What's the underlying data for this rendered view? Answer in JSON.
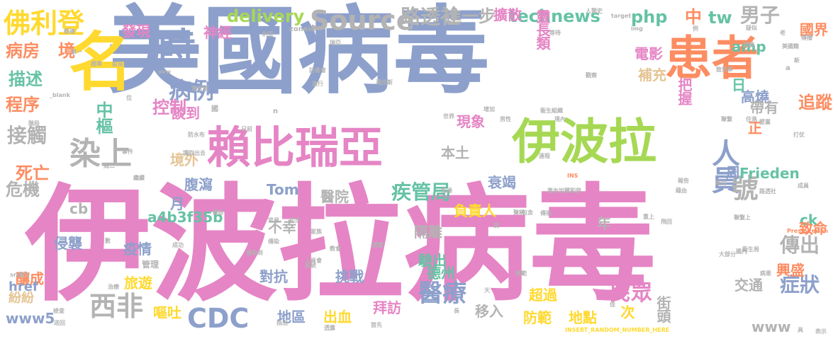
{
  "palette": {
    "pink": "#e585c5",
    "blue": "#8da0cb",
    "green": "#a6d854",
    "orange": "#fc8d62",
    "yellow": "#ffd92f",
    "teal": "#66c2a5",
    "tan": "#e5c494",
    "gray": "#b3b3b3"
  },
  "words": [
    {
      "text": "伊波拉病毒",
      "color": "pink"
    },
    {
      "text": "美國病毒",
      "color": "blue"
    },
    {
      "text": "名",
      "color": "yellow"
    },
    {
      "text": "患者",
      "color": "orange"
    },
    {
      "text": "伊波拉",
      "color": "green"
    },
    {
      "text": "賴比瑞亞",
      "color": "pink"
    },
    {
      "text": "時",
      "color": "blue"
    },
    {
      "text": "佛利登",
      "color": "yellow"
    },
    {
      "text": "染上",
      "color": "gray"
    },
    {
      "text": "人員",
      "color": "blue"
    },
    {
      "text": "號",
      "color": "gray"
    },
    {
      "text": "病例",
      "color": "blue"
    },
    {
      "text": "Source",
      "color": "gray"
    },
    {
      "text": "路透社",
      "color": "gray"
    },
    {
      "text": "接觸",
      "color": "gray"
    },
    {
      "text": "疾管局",
      "color": "teal"
    },
    {
      "text": "醫療",
      "color": "blue"
    },
    {
      "text": "CDC",
      "color": "blue"
    },
    {
      "text": "西非",
      "color": "gray"
    },
    {
      "text": "民眾",
      "color": "pink"
    },
    {
      "text": "傳出",
      "color": "gray"
    },
    {
      "text": "症狀",
      "color": "blue"
    },
    {
      "text": "男子",
      "color": "gray"
    },
    {
      "text": "控制",
      "color": "pink"
    },
    {
      "text": "中樞",
      "color": "teal"
    },
    {
      "text": "死亡",
      "color": "orange"
    },
    {
      "text": "病房",
      "color": "orange"
    },
    {
      "text": "境",
      "color": "orange"
    },
    {
      "text": "描述",
      "color": "teal"
    },
    {
      "text": "程序",
      "color": "orange"
    },
    {
      "text": "危機",
      "color": "gray"
    },
    {
      "text": "進一步",
      "color": "gray"
    },
    {
      "text": "delivery",
      "color": "green"
    },
    {
      "text": "technews",
      "color": "teal"
    },
    {
      "text": "php",
      "color": "teal"
    },
    {
      "text": "中",
      "color": "orange"
    },
    {
      "text": "tw",
      "color": "teal"
    },
    {
      "text": "追蹤",
      "color": "orange"
    },
    {
      "text": "靈長類",
      "color": "pink"
    },
    {
      "text": "擴散",
      "color": "pink"
    },
    {
      "text": "發現",
      "color": "pink"
    },
    {
      "text": "神經",
      "color": "pink"
    },
    {
      "text": "電影",
      "color": "pink"
    },
    {
      "text": "國界",
      "color": "orange"
    },
    {
      "text": "補充",
      "color": "tan"
    },
    {
      "text": "把握",
      "color": "pink"
    },
    {
      "text": "amp",
      "color": "teal"
    },
    {
      "text": "高燒",
      "color": "blue"
    },
    {
      "text": "帶有",
      "color": "gray"
    },
    {
      "text": "日",
      "color": "teal"
    },
    {
      "text": "正",
      "color": "orange"
    },
    {
      "text": "談到",
      "color": "pink"
    },
    {
      "text": "現象",
      "color": "pink"
    },
    {
      "text": "本土",
      "color": "gray"
    },
    {
      "text": "境外",
      "color": "tan"
    },
    {
      "text": "周",
      "color": "blue"
    },
    {
      "text": "Frieden",
      "color": "teal"
    },
    {
      "text": "腹瀉",
      "color": "blue"
    },
    {
      "text": "衰竭",
      "color": "blue"
    },
    {
      "text": "月",
      "color": "blue"
    },
    {
      "text": "Tom",
      "color": "blue"
    },
    {
      "text": "醫院",
      "color": "gray"
    },
    {
      "text": "負責人",
      "color": "yellow"
    },
    {
      "text": "cb",
      "color": "gray"
    },
    {
      "text": "a4b3f35b",
      "color": "teal"
    },
    {
      "text": "年",
      "color": "gray"
    },
    {
      "text": "ck",
      "color": "teal"
    },
    {
      "text": "不幸",
      "color": "gray"
    },
    {
      "text": "隔離",
      "color": "gray"
    },
    {
      "text": "侵襲",
      "color": "blue"
    },
    {
      "text": "疫情",
      "color": "blue"
    },
    {
      "text": "驗出",
      "color": "teal"
    },
    {
      "text": "致命",
      "color": "orange"
    },
    {
      "text": "釀成",
      "color": "orange"
    },
    {
      "text": "對抗",
      "color": "blue"
    },
    {
      "text": "挑戰",
      "color": "blue"
    },
    {
      "text": "德州",
      "color": "teal"
    },
    {
      "text": "旅遊",
      "color": "yellow"
    },
    {
      "text": "興盛",
      "color": "orange"
    },
    {
      "text": "href",
      "color": "blue"
    },
    {
      "text": "紛紛",
      "color": "tan"
    },
    {
      "text": "超過",
      "color": "yellow"
    },
    {
      "text": "交通",
      "color": "gray"
    },
    {
      "text": "www5",
      "color": "blue"
    },
    {
      "text": "嘔吐",
      "color": "yellow"
    },
    {
      "text": "地區",
      "color": "blue"
    },
    {
      "text": "出血",
      "color": "yellow"
    },
    {
      "text": "拜訪",
      "color": "pink"
    },
    {
      "text": "移入",
      "color": "gray"
    },
    {
      "text": "防範",
      "color": "yellow"
    },
    {
      "text": "地點",
      "color": "yellow"
    },
    {
      "text": "次",
      "color": "yellow"
    },
    {
      "text": "街頭",
      "color": "gray"
    },
    {
      "text": "www",
      "color": "gray"
    },
    {
      "text": "管理",
      "color": "gray"
    },
    {
      "text": "國",
      "color": "gray"
    },
    {
      "text": "利亞",
      "color": "gray"
    },
    {
      "text": "zoneid",
      "color": "gray"
    },
    {
      "text": "_blank",
      "color": "gray"
    },
    {
      "text": "src",
      "color": "gray"
    },
    {
      "text": "target",
      "color": "gray"
    },
    {
      "text": "img",
      "color": "gray"
    },
    {
      "text": "INS",
      "color": "orange"
    },
    {
      "text": "Presbyterian",
      "color": "orange"
    },
    {
      "text": "INSERT_RANDOM_NUMBER_HERE",
      "color": "yellow"
    },
    {
      "text": "avw",
      "color": "gray"
    },
    {
      "text": "n",
      "color": "gray"
    },
    {
      "text": "a",
      "color": "gray"
    },
    {
      "text": "第一",
      "color": "gray"
    },
    {
      "text": "記者會",
      "color": "gray"
    },
    {
      "text": "潛伏期",
      "color": "gray"
    },
    {
      "text": "確診",
      "color": "gray"
    },
    {
      "text": "感染到",
      "color": "gray"
    },
    {
      "text": "成功",
      "color": "gray"
    },
    {
      "text": "初步",
      "color": "gray"
    },
    {
      "text": "官員",
      "color": "gray"
    },
    {
      "text": "檢查",
      "color": "gray"
    },
    {
      "text": "送回",
      "color": "gray"
    },
    {
      "text": "指出",
      "color": "gray"
    },
    {
      "text": "透露",
      "color": "gray"
    },
    {
      "text": "家族",
      "color": "gray"
    },
    {
      "text": "教會",
      "color": "gray"
    },
    {
      "text": "人員會",
      "color": "gray"
    },
    {
      "text": "系統",
      "color": "gray"
    },
    {
      "text": "首先",
      "color": "gray"
    },
    {
      "text": "衛生組織",
      "color": "gray"
    },
    {
      "text": "境內",
      "color": "gray"
    },
    {
      "text": "塞內加爾和奈",
      "color": "gray"
    },
    {
      "text": "報告",
      "color": "gray"
    },
    {
      "text": "藉由",
      "color": "gray"
    },
    {
      "text": "經由",
      "color": "gray"
    },
    {
      "text": "路透社",
      "color": "gray"
    },
    {
      "text": "成員",
      "color": "gray"
    },
    {
      "text": "病患",
      "color": "gray"
    },
    {
      "text": "大部分",
      "color": "gray"
    },
    {
      "text": "國內",
      "color": "gray"
    },
    {
      "text": "衛生局",
      "color": "gray"
    },
    {
      "text": "飛回",
      "color": "gray"
    },
    {
      "text": "重上",
      "color": "gray"
    },
    {
      "text": "聯繫上",
      "color": "gray"
    },
    {
      "text": "包含",
      "color": "gray"
    },
    {
      "text": "傳染",
      "color": "gray"
    },
    {
      "text": "聲稱",
      "color": "gray"
    },
    {
      "text": "疑似",
      "color": "gray"
    },
    {
      "text": "致死率",
      "color": "gray"
    },
    {
      "text": "試驗",
      "color": "gray"
    },
    {
      "text": "聯繫",
      "color": "gray"
    },
    {
      "text": "打仗",
      "color": "gray"
    },
    {
      "text": "住進",
      "color": "gray"
    },
    {
      "text": "壁畫",
      "color": "gray"
    },
    {
      "text": "觀察",
      "color": "gray"
    },
    {
      "text": "等待",
      "color": "gray"
    },
    {
      "text": "人類史",
      "color": "gray"
    },
    {
      "text": "美國籍",
      "color": "gray"
    },
    {
      "text": "傳播",
      "color": "gray"
    },
    {
      "text": "例",
      "color": "gray"
    },
    {
      "text": "世界",
      "color": "gray"
    },
    {
      "text": "男性",
      "color": "gray"
    },
    {
      "text": "增加",
      "color": "gray"
    },
    {
      "text": "日前",
      "color": "gray"
    },
    {
      "text": "防水布",
      "color": "gray"
    },
    {
      "text": "讀取出去",
      "color": "gray"
    },
    {
      "text": "事件",
      "color": "gray"
    },
    {
      "text": "周二",
      "color": "gray"
    },
    {
      "text": "階段",
      "color": "gray"
    },
    {
      "text": "標準",
      "color": "gray"
    },
    {
      "text": "位",
      "color": "gray"
    },
    {
      "text": "疫苗",
      "color": "gray"
    },
    {
      "text": "經確",
      "color": "gray"
    },
    {
      "text": "進行",
      "color": "gray"
    },
    {
      "text": "違拉斯",
      "color": "gray"
    },
    {
      "text": "瑞亞",
      "color": "gray"
    },
    {
      "text": "遠程",
      "color": "gray"
    },
    {
      "text": "老",
      "color": "gray"
    },
    {
      "text": "新",
      "color": "gray"
    },
    {
      "text": "繼續",
      "color": "gray"
    },
    {
      "text": "治療",
      "color": "gray"
    },
    {
      "text": "數",
      "color": "gray"
    },
    {
      "text": "重力",
      "color": "gray"
    },
    {
      "text": "表示",
      "color": "gray"
    },
    {
      "text": "傳染",
      "color": "gray"
    },
    {
      "text": "證實",
      "color": "gray"
    },
    {
      "text": "規範",
      "color": "gray"
    },
    {
      "text": "天",
      "color": "gray"
    },
    {
      "text": "長",
      "color": "gray"
    },
    {
      "text": "佳",
      "color": "gray"
    },
    {
      "text": "說",
      "color": "gray"
    },
    {
      "text": "具",
      "color": "gray"
    },
    {
      "text": "抵達",
      "color": "gray"
    }
  ]
}
